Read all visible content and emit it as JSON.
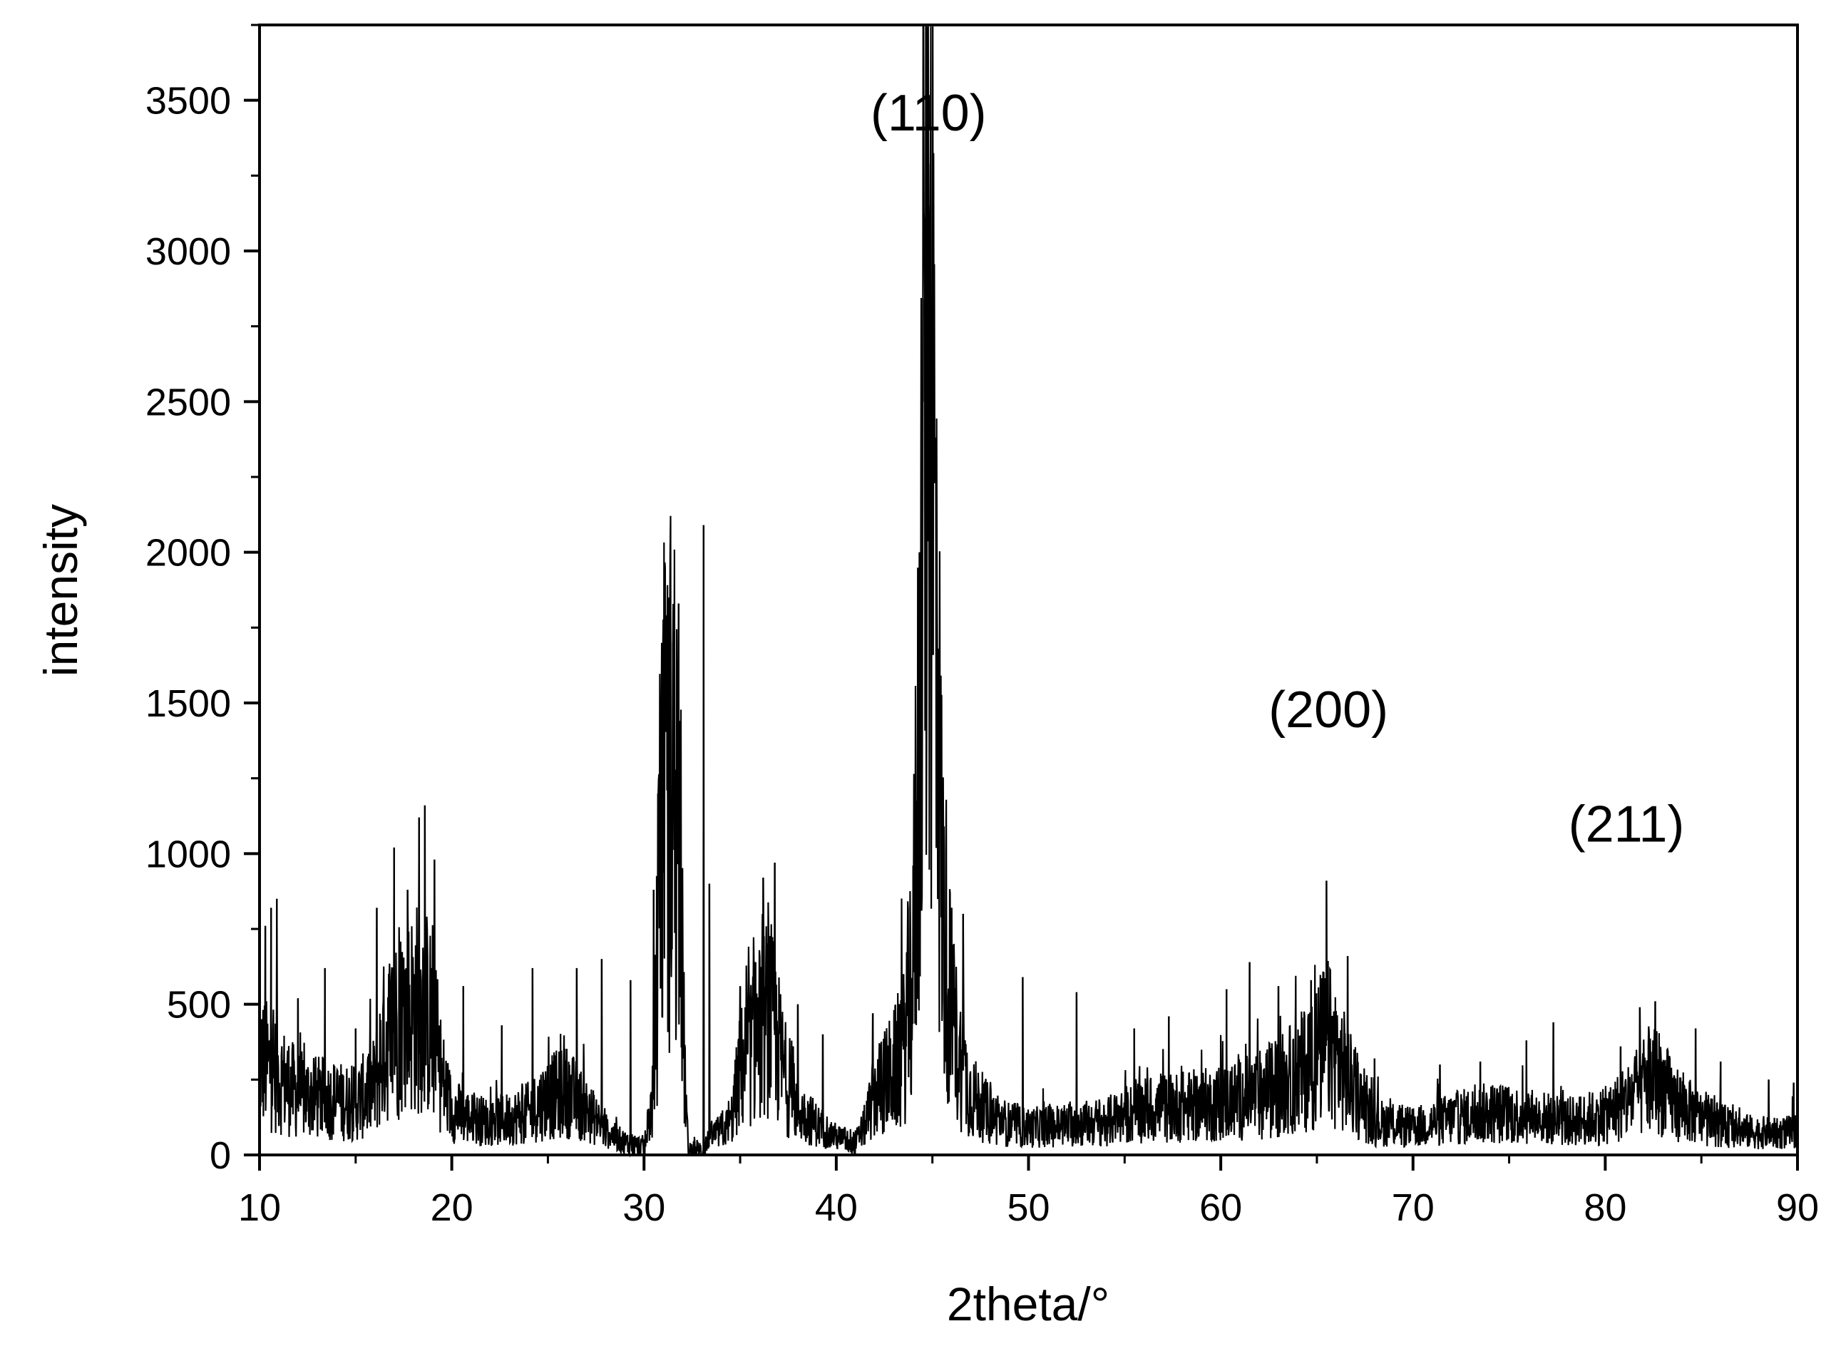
{
  "chart_data": {
    "type": "line",
    "title": "",
    "xlabel": "2theta/°",
    "ylabel": "intensity",
    "xlim": [
      10,
      90
    ],
    "ylim": [
      0,
      3750
    ],
    "xticks": [
      10,
      20,
      30,
      40,
      50,
      60,
      70,
      80,
      90
    ],
    "yticks": [
      0,
      500,
      1000,
      1500,
      2000,
      2500,
      3000,
      3500
    ],
    "grid": false,
    "line_color": "#000000",
    "annotations": [
      {
        "text": "(110)",
        "x": 44.8,
        "y": 3400
      },
      {
        "text": "(200)",
        "x": 65.6,
        "y": 1420
      },
      {
        "text": "(211)",
        "x": 81.1,
        "y": 1040
      }
    ],
    "series": [
      {
        "peaks": [
          {
            "x": 10.3,
            "y": 760
          },
          {
            "x": 10.6,
            "y": 820
          },
          {
            "x": 10.9,
            "y": 850
          },
          {
            "x": 12.0,
            "y": 520
          },
          {
            "x": 13.4,
            "y": 620
          },
          {
            "x": 15.0,
            "y": 420
          },
          {
            "x": 16.1,
            "y": 820
          },
          {
            "x": 17.0,
            "y": 1020
          },
          {
            "x": 17.7,
            "y": 880
          },
          {
            "x": 18.3,
            "y": 1120
          },
          {
            "x": 18.6,
            "y": 1160
          },
          {
            "x": 19.1,
            "y": 980
          },
          {
            "x": 20.6,
            "y": 560
          },
          {
            "x": 22.6,
            "y": 430
          },
          {
            "x": 24.2,
            "y": 620
          },
          {
            "x": 26.5,
            "y": 620
          },
          {
            "x": 27.8,
            "y": 650
          },
          {
            "x": 29.3,
            "y": 580
          },
          {
            "x": 30.5,
            "y": 880
          },
          {
            "x": 30.9,
            "y": 1400
          },
          {
            "x": 31.2,
            "y": 1560
          },
          {
            "x": 31.3,
            "y": 1850
          },
          {
            "x": 31.5,
            "y": 1700
          },
          {
            "x": 31.8,
            "y": 1830
          },
          {
            "x": 33.1,
            "y": 2090
          },
          {
            "x": 33.4,
            "y": 900
          },
          {
            "x": 35.0,
            "y": 560
          },
          {
            "x": 35.8,
            "y": 640
          },
          {
            "x": 36.2,
            "y": 920
          },
          {
            "x": 36.8,
            "y": 970
          },
          {
            "x": 38.0,
            "y": 500
          },
          {
            "x": 39.3,
            "y": 400
          },
          {
            "x": 41.9,
            "y": 470
          },
          {
            "x": 43.5,
            "y": 600
          },
          {
            "x": 44.0,
            "y": 960
          },
          {
            "x": 44.4,
            "y": 2000
          },
          {
            "x": 44.6,
            "y": 2840
          },
          {
            "x": 44.8,
            "y": 3150
          },
          {
            "x": 44.9,
            "y": 3290
          },
          {
            "x": 45.3,
            "y": 1680
          },
          {
            "x": 45.6,
            "y": 1090
          },
          {
            "x": 46.0,
            "y": 820
          },
          {
            "x": 46.6,
            "y": 800
          },
          {
            "x": 49.7,
            "y": 590
          },
          {
            "x": 52.5,
            "y": 540
          },
          {
            "x": 55.5,
            "y": 420
          },
          {
            "x": 57.3,
            "y": 460
          },
          {
            "x": 60.3,
            "y": 550
          },
          {
            "x": 61.5,
            "y": 640
          },
          {
            "x": 63.0,
            "y": 560
          },
          {
            "x": 64.7,
            "y": 580
          },
          {
            "x": 65.5,
            "y": 910
          },
          {
            "x": 66.6,
            "y": 660
          },
          {
            "x": 68.0,
            "y": 320
          },
          {
            "x": 71.4,
            "y": 300
          },
          {
            "x": 73.5,
            "y": 310
          },
          {
            "x": 75.9,
            "y": 380
          },
          {
            "x": 77.3,
            "y": 440
          },
          {
            "x": 80.8,
            "y": 360
          },
          {
            "x": 81.8,
            "y": 490
          },
          {
            "x": 82.6,
            "y": 510
          },
          {
            "x": 84.7,
            "y": 420
          },
          {
            "x": 86.0,
            "y": 310
          },
          {
            "x": 88.5,
            "y": 250
          },
          {
            "x": 89.8,
            "y": 240
          }
        ],
        "envelope": [
          [
            10,
            320
          ],
          [
            11,
            260
          ],
          [
            12,
            200
          ],
          [
            13,
            190
          ],
          [
            14,
            180
          ],
          [
            15,
            170
          ],
          [
            16,
            230
          ],
          [
            16.5,
            380
          ],
          [
            17,
            420
          ],
          [
            18,
            480
          ],
          [
            18.5,
            500
          ],
          [
            19,
            420
          ],
          [
            19.5,
            250
          ],
          [
            20,
            150
          ],
          [
            21,
            120
          ],
          [
            22,
            110
          ],
          [
            23,
            120
          ],
          [
            24,
            140
          ],
          [
            25,
            190
          ],
          [
            26,
            210
          ],
          [
            27,
            150
          ],
          [
            28,
            80
          ],
          [
            29,
            40
          ],
          [
            30,
            20
          ],
          [
            30.5,
            200
          ],
          [
            30.8,
            900
          ],
          [
            31.0,
            1150
          ],
          [
            31.5,
            1300
          ],
          [
            31.8,
            1100
          ],
          [
            32.1,
            300
          ],
          [
            32.3,
            10
          ],
          [
            33,
            10
          ],
          [
            33.5,
            60
          ],
          [
            34.5,
            100
          ],
          [
            35,
            280
          ],
          [
            35.5,
            340
          ],
          [
            36,
            400
          ],
          [
            36.5,
            470
          ],
          [
            37,
            350
          ],
          [
            37.5,
            220
          ],
          [
            38,
            150
          ],
          [
            39,
            100
          ],
          [
            40,
            60
          ],
          [
            41,
            40
          ],
          [
            41.5,
            100
          ],
          [
            42,
            200
          ],
          [
            43,
            280
          ],
          [
            43.5,
            350
          ],
          [
            44,
            650
          ],
          [
            44.3,
            1400
          ],
          [
            44.6,
            2500
          ],
          [
            44.8,
            2950
          ],
          [
            45.0,
            2700
          ],
          [
            45.2,
            1700
          ],
          [
            45.5,
            900
          ],
          [
            46,
            450
          ],
          [
            46.5,
            300
          ],
          [
            47,
            200
          ],
          [
            48,
            130
          ],
          [
            49,
            100
          ],
          [
            50,
            90
          ],
          [
            52,
            100
          ],
          [
            54,
            110
          ],
          [
            56,
            150
          ],
          [
            58,
            160
          ],
          [
            60,
            170
          ],
          [
            62,
            200
          ],
          [
            64,
            260
          ],
          [
            65,
            330
          ],
          [
            65.5,
            380
          ],
          [
            66,
            330
          ],
          [
            67,
            200
          ],
          [
            68,
            110
          ],
          [
            70,
            90
          ],
          [
            72,
            120
          ],
          [
            74,
            140
          ],
          [
            76,
            130
          ],
          [
            78,
            110
          ],
          [
            80,
            130
          ],
          [
            81,
            170
          ],
          [
            82,
            230
          ],
          [
            82.6,
            260
          ],
          [
            83.5,
            180
          ],
          [
            85,
            120
          ],
          [
            87,
            80
          ],
          [
            89,
            70
          ],
          [
            90,
            80
          ]
        ]
      }
    ]
  }
}
